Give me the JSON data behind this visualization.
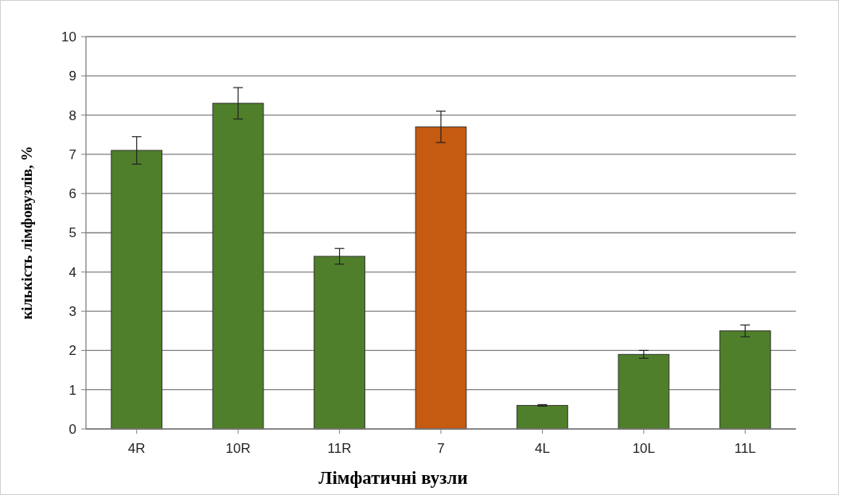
{
  "chart_data": {
    "type": "bar",
    "xlabel": "Лімфатичні вузли",
    "ylabel": "кількість лімфовузлів, %",
    "categories": [
      "4R",
      "10R",
      "11R",
      "7",
      "4L",
      "10L",
      "11L"
    ],
    "values": [
      7.1,
      8.3,
      4.4,
      7.7,
      0.6,
      1.9,
      2.5
    ],
    "colors": [
      "#4f7f2a",
      "#4f7f2a",
      "#4f7f2a",
      "#c55a11",
      "#4f7f2a",
      "#4f7f2a",
      "#4f7f2a"
    ],
    "errors": [
      0.35,
      0.4,
      0.2,
      0.4,
      0.02,
      0.1,
      0.15
    ],
    "ylim": [
      0,
      10
    ],
    "yticks": [
      0,
      1,
      2,
      3,
      4,
      5,
      6,
      7,
      8,
      9,
      10
    ],
    "grid": "y"
  }
}
